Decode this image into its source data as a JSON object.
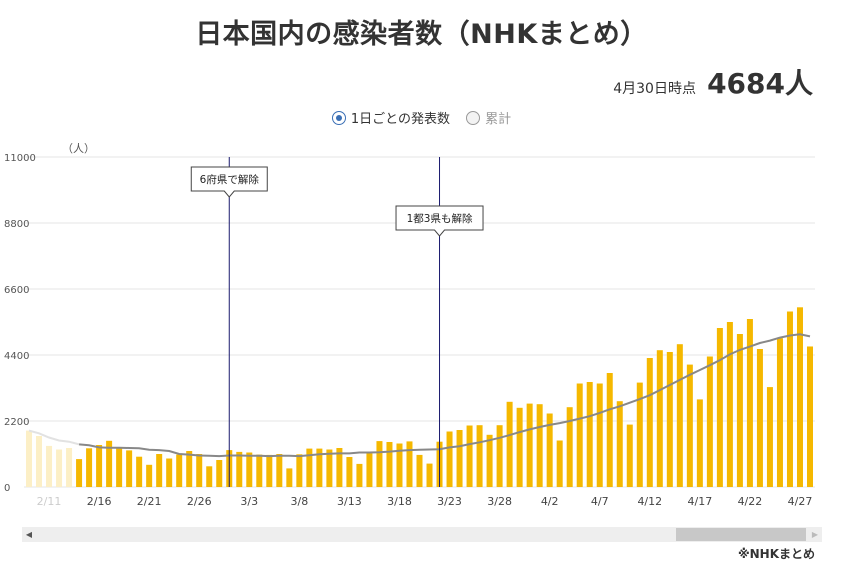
{
  "title": "日本国内の感染者数（NHKまとめ）",
  "as_of": {
    "date_label": "4月30日時点",
    "total": "4684人"
  },
  "toggles": {
    "daily": "1日ごとの発表数",
    "cumulative": "累計"
  },
  "source": "※NHKまとめ",
  "colors": {
    "bar": "#f5b800",
    "bar_faded": "#fcefc6",
    "line": "#888888",
    "event_line": "#1a1a6e"
  },
  "chart_data": {
    "type": "bar",
    "ylabel": "（人）",
    "ylim": [
      0,
      11000
    ],
    "yticks": [
      0,
      2200,
      4400,
      6600,
      8800,
      11000
    ],
    "x_tick_labels": [
      "2/11",
      "2/16",
      "2/21",
      "2/26",
      "3/3",
      "3/8",
      "3/13",
      "3/18",
      "3/23",
      "3/28",
      "4/2",
      "4/7",
      "4/12",
      "4/17",
      "4/22",
      "4/27"
    ],
    "start_date": "2/9",
    "faded_count": 5,
    "values": [
      1880,
      1700,
      1370,
      1250,
      1300,
      930,
      1290,
      1400,
      1540,
      1300,
      1220,
      1010,
      740,
      1100,
      950,
      1080,
      1200,
      1100,
      690,
      900,
      1230,
      1170,
      1150,
      1080,
      1070,
      1100,
      620,
      1090,
      1280,
      1280,
      1250,
      1300,
      1000,
      770,
      1120,
      1530,
      1500,
      1450,
      1520,
      1070,
      780,
      1510,
      1850,
      1900,
      2050,
      2060,
      1740,
      2060,
      2840,
      2640,
      2780,
      2760,
      2450,
      1550,
      2660,
      3450,
      3500,
      3450,
      3800,
      2860,
      2080,
      3480,
      4300,
      4560,
      4500,
      4760,
      4080,
      2920,
      4350,
      5300,
      5500,
      5100,
      5600,
      4600,
      3330,
      4960,
      5850,
      5990,
      4684
    ],
    "avg_7day": [
      1880,
      1790,
      1650,
      1550,
      1510,
      1420,
      1390,
      1320,
      1310,
      1310,
      1300,
      1290,
      1240,
      1230,
      1200,
      1100,
      1080,
      1050,
      1040,
      1030,
      1050,
      1050,
      1040,
      1040,
      1030,
      1040,
      1040,
      1030,
      1060,
      1090,
      1110,
      1120,
      1120,
      1150,
      1150,
      1160,
      1180,
      1210,
      1230,
      1240,
      1250,
      1260,
      1320,
      1360,
      1430,
      1490,
      1560,
      1640,
      1730,
      1830,
      1920,
      2000,
      2070,
      2130,
      2200,
      2280,
      2360,
      2470,
      2590,
      2690,
      2810,
      2930,
      3060,
      3230,
      3400,
      3570,
      3740,
      3900,
      4060,
      4230,
      4420,
      4570,
      4680,
      4800,
      4880,
      4980,
      5050,
      5090,
      5020
    ],
    "events": [
      {
        "label": "6府県で解除",
        "date": "3/1"
      },
      {
        "label": "1都3県も解除",
        "date": "3/22"
      }
    ]
  }
}
